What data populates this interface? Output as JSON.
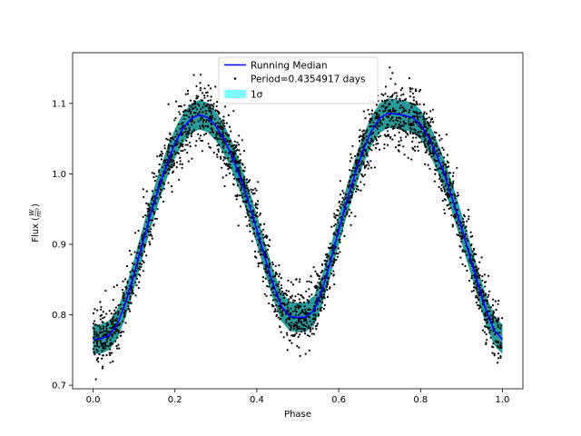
{
  "chart_data": {
    "type": "scatter",
    "title": "",
    "xlabel": "Phase",
    "ylabel": "Flux (W/m²)",
    "ylabel_parts": {
      "main": "Flux",
      "num": "W",
      "den": "m²"
    },
    "xlim": [
      -0.05,
      1.05
    ],
    "ylim": [
      0.695,
      1.172
    ],
    "xticks": [
      0.0,
      0.2,
      0.4,
      0.6,
      0.8,
      1.0
    ],
    "xtick_labels": [
      "0.0",
      "0.2",
      "0.4",
      "0.6",
      "0.8",
      "1.0"
    ],
    "yticks": [
      0.7,
      0.8,
      0.9,
      1.0,
      1.1
    ],
    "ytick_labels": [
      "0.7",
      "0.8",
      "0.9",
      "1.0",
      "1.1"
    ],
    "grid": false,
    "legend_position": "top-center",
    "period_days": 0.4354917,
    "series": [
      {
        "name": "Running Median",
        "kind": "line",
        "color": "#0000ff",
        "x": [
          0.0,
          0.02,
          0.04,
          0.06,
          0.08,
          0.1,
          0.12,
          0.14,
          0.16,
          0.18,
          0.2,
          0.22,
          0.24,
          0.26,
          0.28,
          0.3,
          0.32,
          0.34,
          0.36,
          0.38,
          0.4,
          0.42,
          0.44,
          0.46,
          0.48,
          0.5,
          0.52,
          0.54,
          0.56,
          0.58,
          0.6,
          0.62,
          0.64,
          0.66,
          0.68,
          0.7,
          0.72,
          0.74,
          0.76,
          0.78,
          0.8,
          0.82,
          0.84,
          0.86,
          0.88,
          0.9,
          0.92,
          0.94,
          0.96,
          0.98,
          1.0
        ],
        "y": [
          0.765,
          0.766,
          0.771,
          0.788,
          0.818,
          0.857,
          0.9,
          0.942,
          0.98,
          1.014,
          1.043,
          1.065,
          1.079,
          1.084,
          1.08,
          1.068,
          1.049,
          1.024,
          0.994,
          0.959,
          0.921,
          0.881,
          0.843,
          0.812,
          0.798,
          0.796,
          0.797,
          0.806,
          0.836,
          0.876,
          0.92,
          0.962,
          1.0,
          1.034,
          1.061,
          1.079,
          1.086,
          1.085,
          1.083,
          1.08,
          1.07,
          1.051,
          1.026,
          0.996,
          0.961,
          0.923,
          0.884,
          0.844,
          0.806,
          0.778,
          0.765
        ]
      },
      {
        "name": "Period=0.4354917 days",
        "kind": "scatter",
        "color": "#000000",
        "scatter_sigma": 0.022
      },
      {
        "name": "1σ",
        "kind": "band",
        "color": "#00ffff",
        "band_color": "#008b8b",
        "halfwidth": 0.021
      }
    ]
  }
}
